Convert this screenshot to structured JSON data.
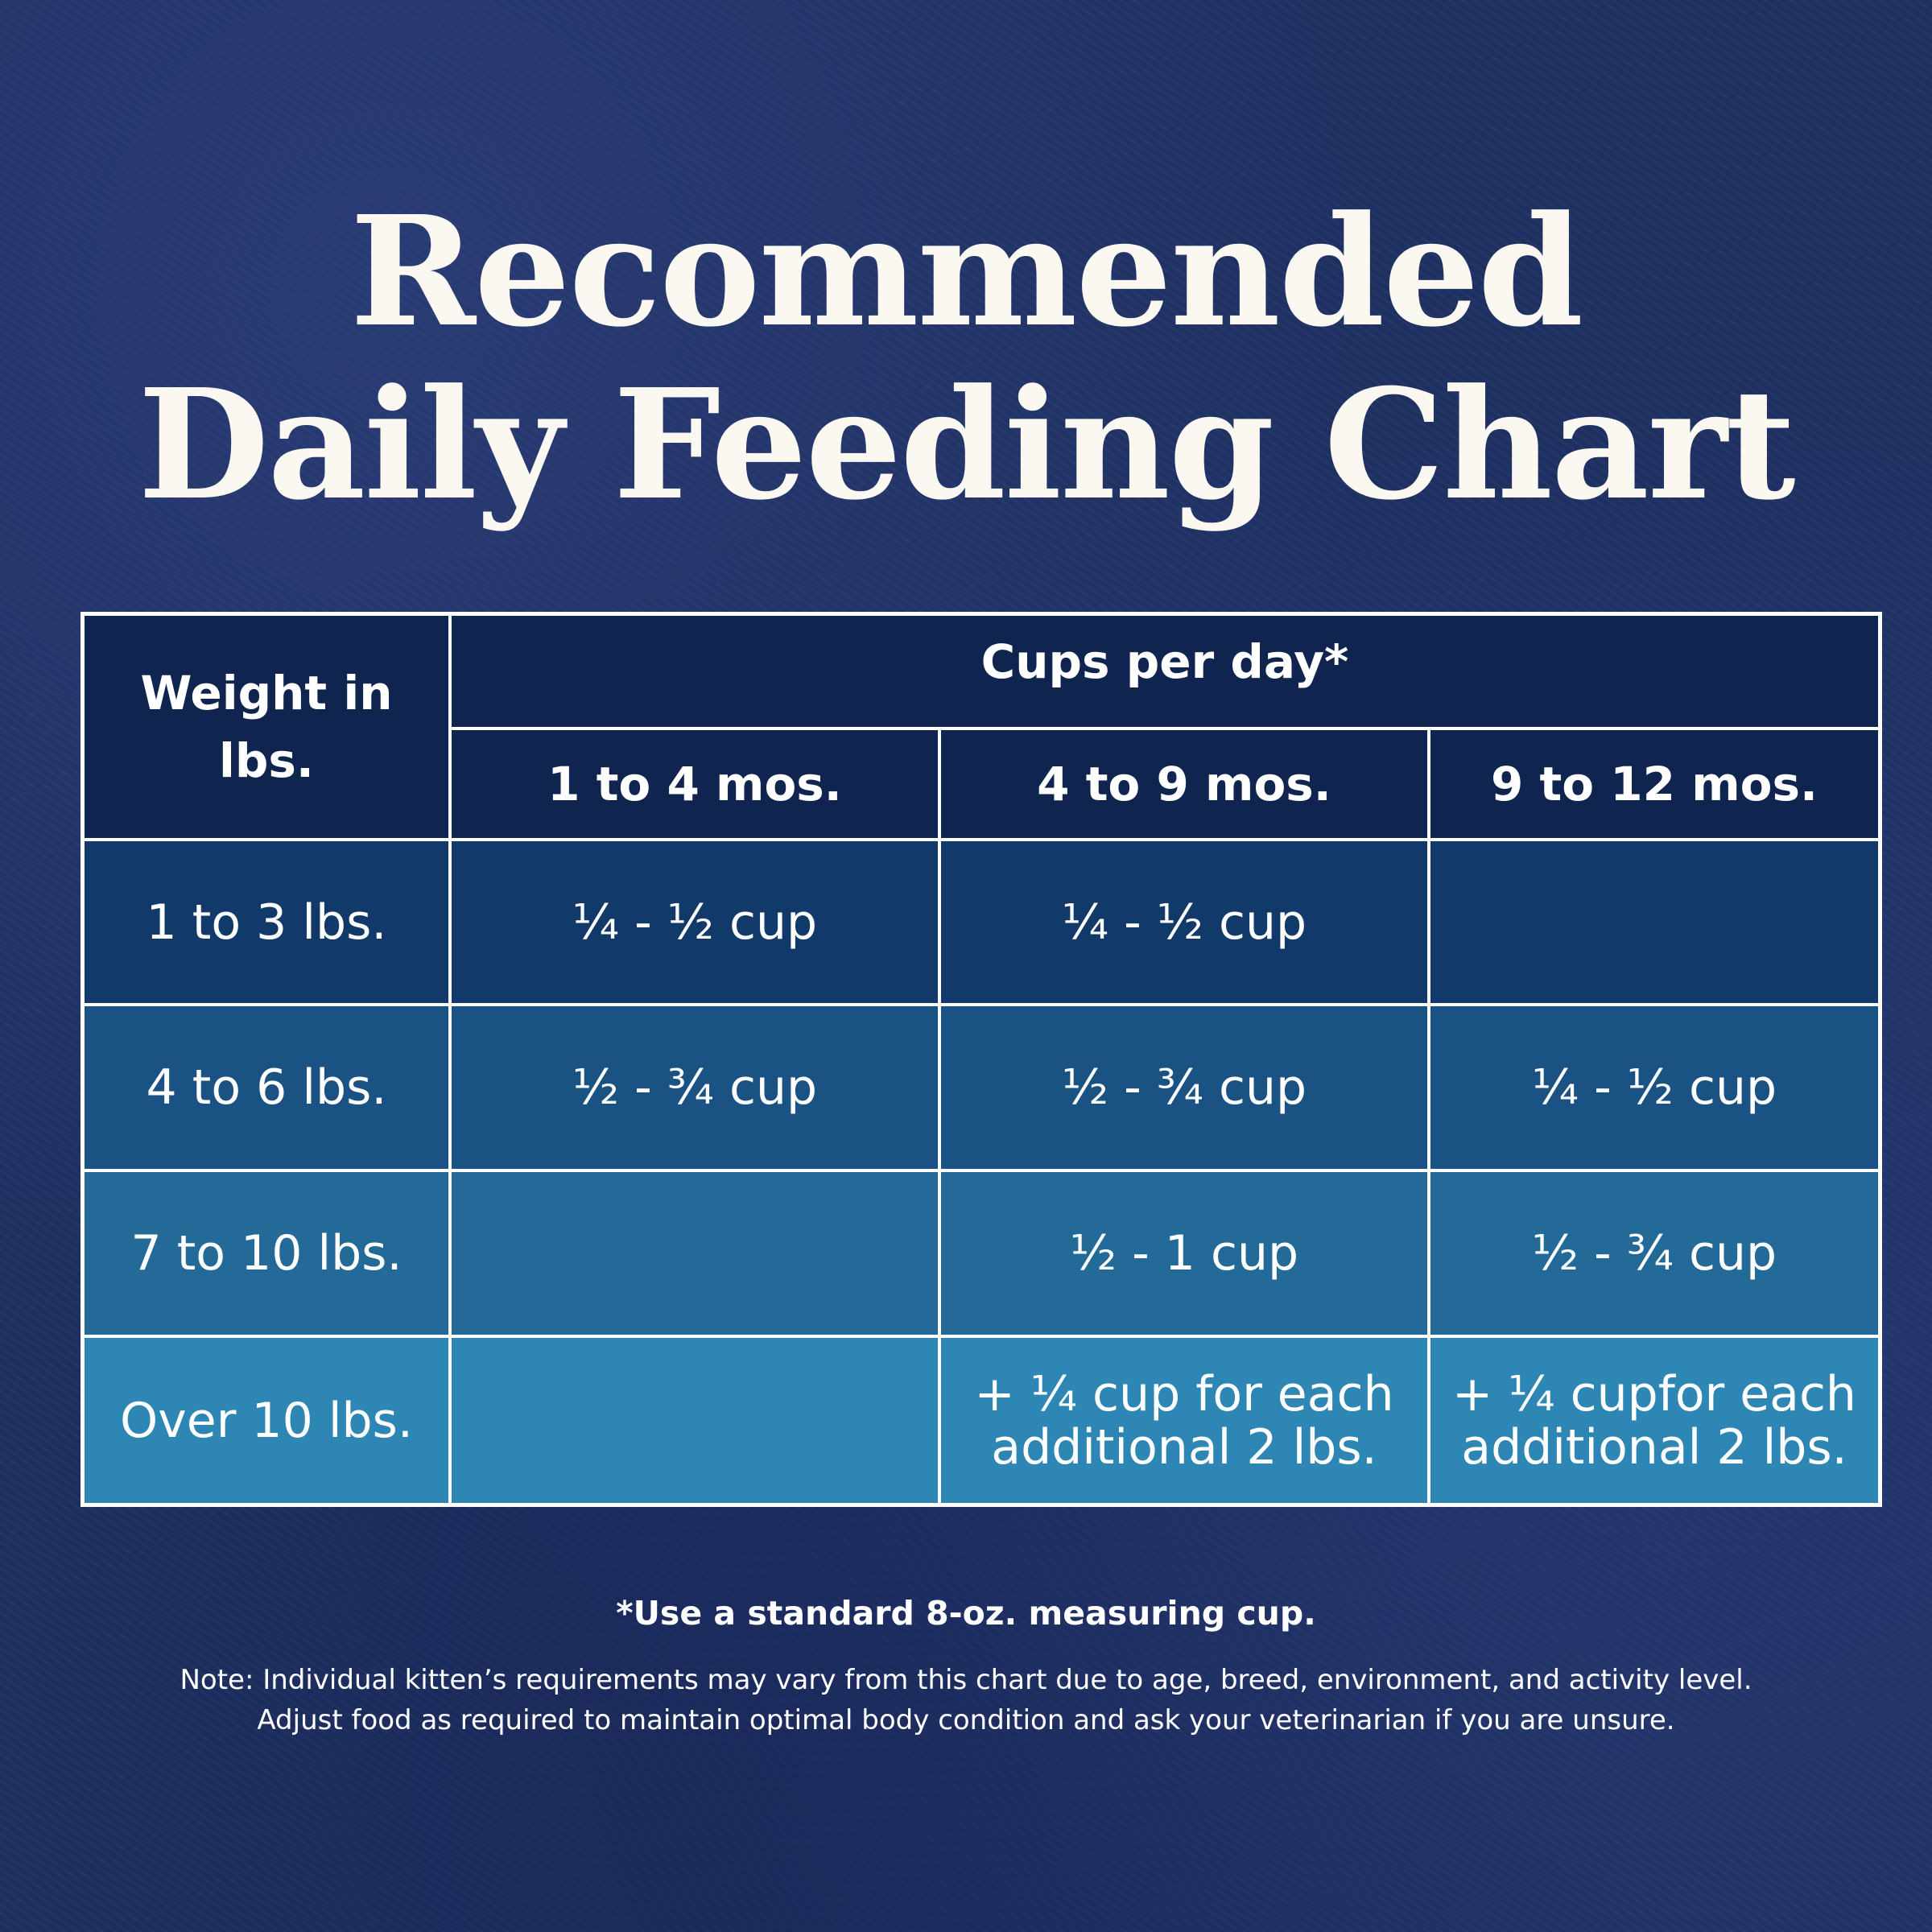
{
  "title": {
    "line1": "Recommended",
    "line2": "Daily Feeding Chart"
  },
  "table": {
    "weight_header": "Weight in lbs.",
    "cups_header": "Cups per day*",
    "age_headers": [
      "1 to 4 mos.",
      "4 to 9 mos.",
      "9 to 12 mos."
    ],
    "rows": [
      {
        "weight": "1 to 3 lbs.",
        "values": [
          "¼ - ½ cup",
          "¼ - ½ cup",
          ""
        ]
      },
      {
        "weight": "4 to 6 lbs.",
        "values": [
          "½ - ¾ cup",
          "½ - ¾ cup",
          "¼ - ½ cup"
        ]
      },
      {
        "weight": "7 to 10 lbs.",
        "values": [
          "",
          "½ - 1 cup",
          "½ - ¾ cup"
        ]
      },
      {
        "weight": "Over 10 lbs.",
        "values": [
          "",
          "+ ¼ cup for each additional 2 lbs.",
          "+ ¼ cupfor each additional 2 lbs."
        ]
      }
    ]
  },
  "footnote": "*Use a standard 8-oz. measuring cup.",
  "note": {
    "line1": "Note: Individual kitten’s requirements may vary from this chart due to age, breed, environment, and activity level.",
    "line2": "Adjust food as required to maintain optimal body condition and ask your veterinarian if you are unsure."
  },
  "colors": {
    "background": "#1f3163",
    "header": "#0f2550",
    "row1": "#113a6b",
    "row2": "#1a5283",
    "row3": "#236a99",
    "row4": "#2e86b5"
  }
}
